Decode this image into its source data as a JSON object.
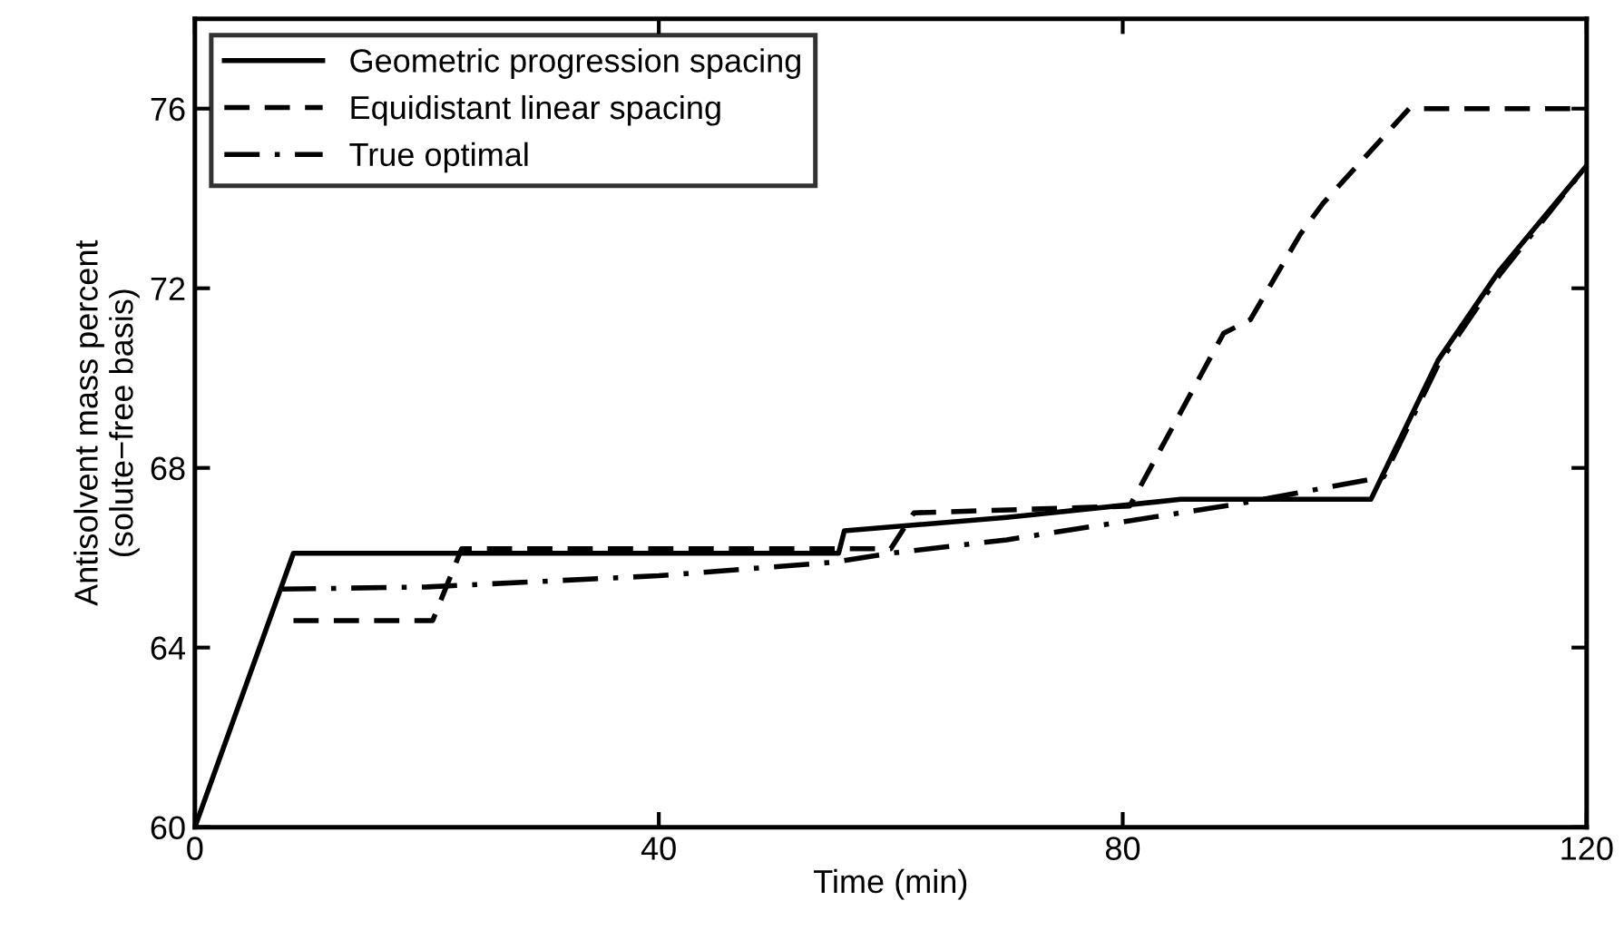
{
  "chart_data": {
    "type": "line",
    "xlabel": "Time (min)",
    "ylabel": "Antisolvent mass percent\n(solute−free basis)",
    "xlim": [
      0,
      120
    ],
    "ylim": [
      60,
      78
    ],
    "xticks": [
      0,
      40,
      80,
      120
    ],
    "yticks": [
      60,
      64,
      68,
      72,
      76
    ],
    "grid": false,
    "legend": "top left",
    "marker": "none",
    "series": [
      {
        "name": "Geometric progression spacing",
        "color": "#000000",
        "line_style": "solid",
        "x": [
          0,
          8.5,
          55.5,
          56,
          70,
          85,
          101.4,
          107.2,
          112.5,
          119.9
        ],
        "values": [
          60,
          66.1,
          66.1,
          66.6,
          66.9,
          67.3,
          67.3,
          70.4,
          72.4,
          74.7
        ]
      },
      {
        "name": "Equidistant linear spacing",
        "color": "#000000",
        "line_style": "dashed",
        "x": [
          8.5,
          20.5,
          23,
          60,
          62,
          80.6,
          88.7,
          91,
          95.3,
          97.3,
          104.7,
          120
        ],
        "values": [
          64.6,
          64.6,
          66.2,
          66.2,
          67.0,
          67.15,
          71.0,
          71.3,
          73.2,
          73.9,
          76.0,
          76.0
        ]
      },
      {
        "name": "True optimal",
        "color": "#000000",
        "line_style": "dashdot",
        "x": [
          7.4,
          20,
          40,
          55,
          60,
          70,
          80,
          90,
          102.5,
          107.2,
          112.5,
          119.9
        ],
        "values": [
          65.3,
          65.35,
          65.6,
          65.9,
          66.1,
          66.4,
          66.8,
          67.2,
          67.8,
          70.3,
          72.3,
          74.7
        ]
      }
    ]
  }
}
